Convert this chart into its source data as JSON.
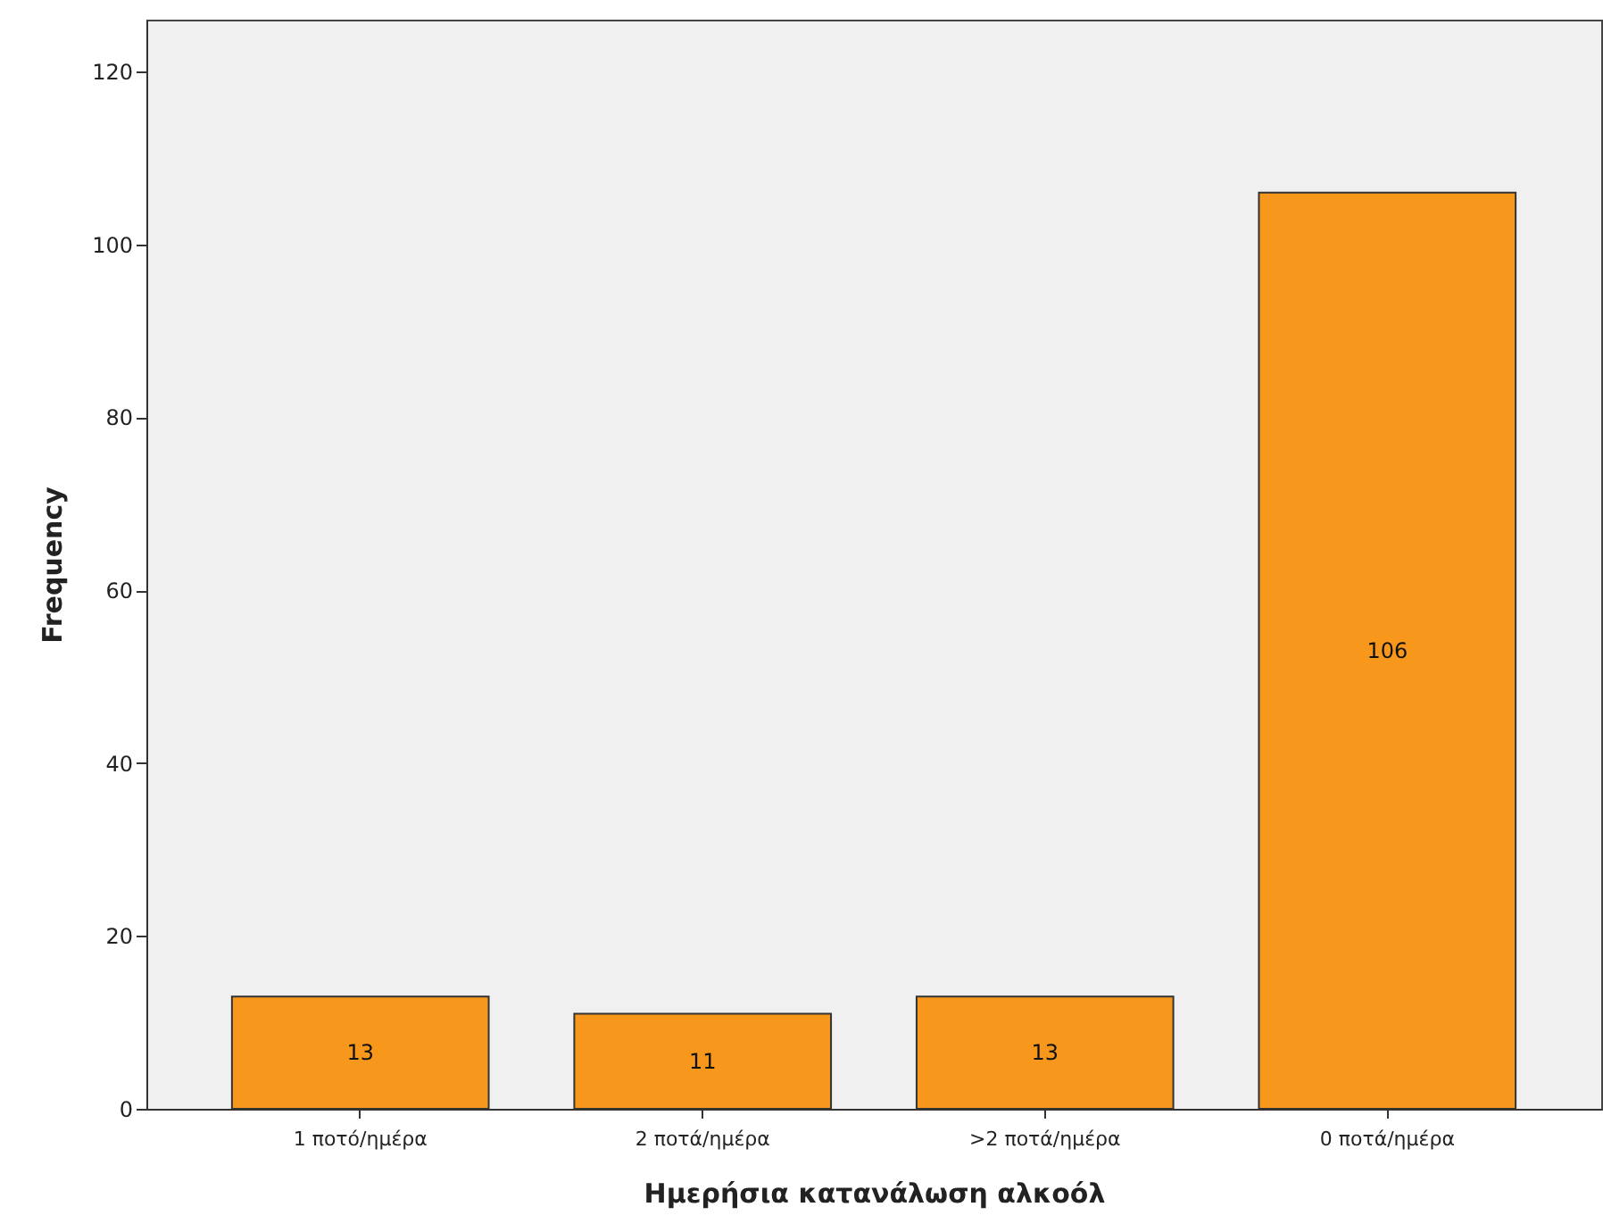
{
  "chart_data": {
    "type": "bar",
    "xlabel": "Ημερήσια κατανάλωση αλκοόλ",
    "ylabel": "Frequency",
    "categories": [
      "1 ποτό/ημέρα",
      "2 ποτά/ημέρα",
      ">2 ποτά/ημέρα",
      "0 ποτά/ημέρα"
    ],
    "values": [
      13,
      11,
      13,
      106
    ],
    "color": "#f7981d",
    "data_labels": true,
    "ylim": [
      0,
      126
    ],
    "yticks": [
      0,
      20,
      40,
      60,
      80,
      100,
      120
    ],
    "grid": false
  }
}
